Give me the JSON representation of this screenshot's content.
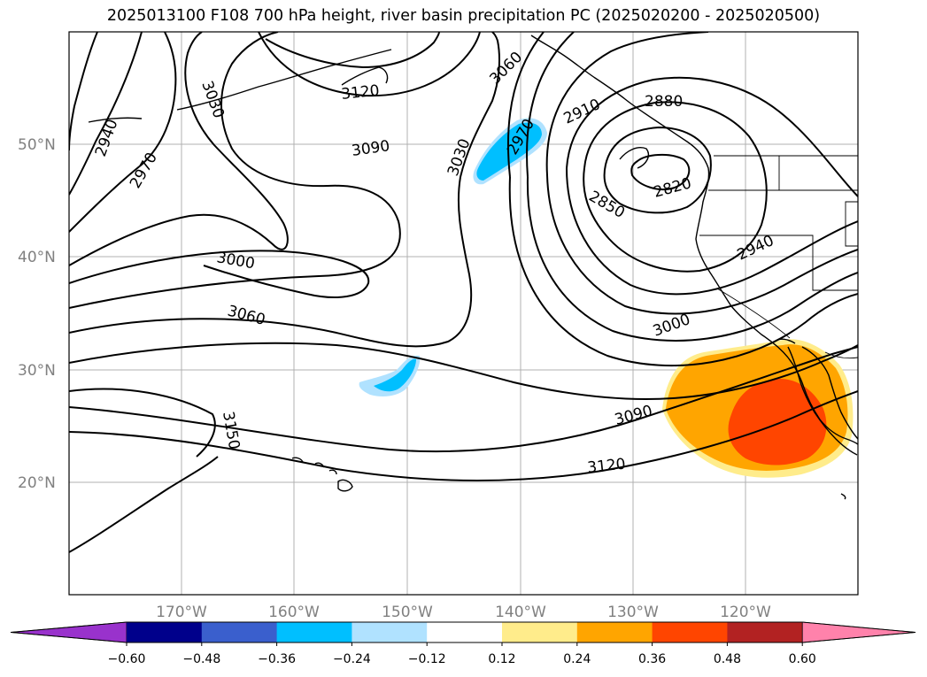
{
  "title": "2025013100 F108 700 hPa height, river basin precipitation PC (2025020200 - 2025020500)",
  "map": {
    "lat_labels": [
      "50°N",
      "40°N",
      "30°N",
      "20°N"
    ],
    "lon_labels": [
      "170°W",
      "160°W",
      "150°W",
      "140°W",
      "130°W",
      "120°W"
    ],
    "contour_labels": [
      "2850",
      "2820",
      "2880",
      "2910",
      "2940",
      "2940",
      "2970",
      "2970",
      "3000",
      "3000",
      "3030",
      "3030",
      "3060",
      "3060",
      "3090",
      "3090",
      "3120",
      "3120",
      "3150"
    ],
    "partial_label": "2910"
  },
  "colorbar": {
    "ticks": [
      "−0.60",
      "−0.48",
      "−0.36",
      "−0.24",
      "−0.12",
      "0.12",
      "0.24",
      "0.36",
      "0.48",
      "0.60"
    ],
    "colors": [
      "#9932cc",
      "#00008b",
      "#3a5fcd",
      "#00bfff",
      "#b0e2ff",
      "#ffffff",
      "#ffec8b",
      "#ffa500",
      "#ff4500",
      "#b22222",
      "#ff82ab"
    ]
  }
}
